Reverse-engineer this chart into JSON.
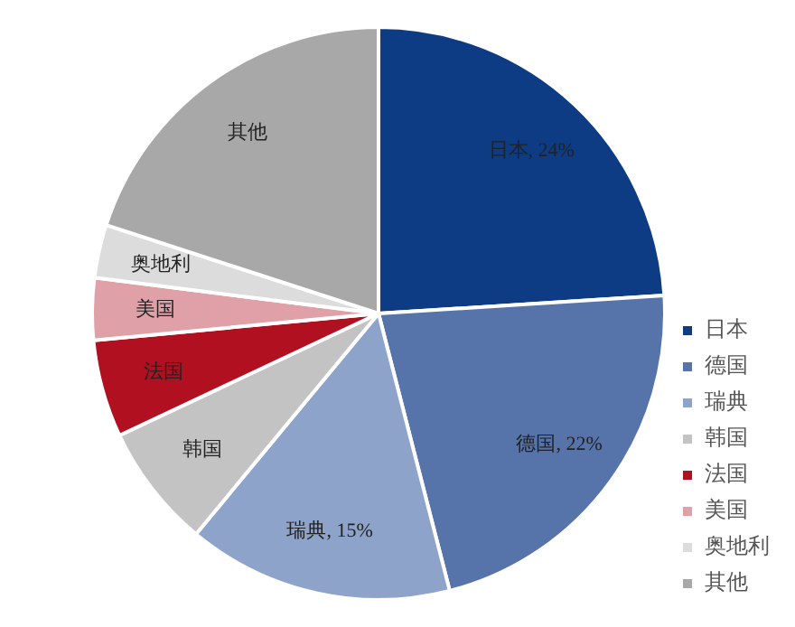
{
  "chart_data": {
    "type": "pie",
    "categories": [
      "日本",
      "德国",
      "瑞典",
      "韩国",
      "法国",
      "美国",
      "奥地利",
      "其他"
    ],
    "values": [
      24,
      22,
      15,
      7,
      5.5,
      3.5,
      3,
      20
    ],
    "value_labels": [
      "日本, 24%",
      "德国, 22%",
      "瑞典, 15%",
      null,
      null,
      null,
      null,
      null
    ],
    "colors": [
      "#0d3b84",
      "#5673aa",
      "#8ea3c9",
      "#c3c3c3",
      "#b01020",
      "#e0a0a8",
      "#dcdcdc",
      "#a8a8a8"
    ],
    "legend": "bottom right"
  }
}
